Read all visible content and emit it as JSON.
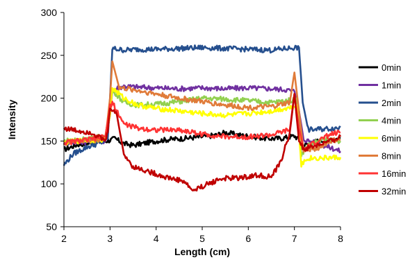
{
  "chart_data": {
    "type": "line",
    "title": "",
    "xlabel": "Length (cm)",
    "ylabel": "Intensity",
    "xlim": [
      2,
      8
    ],
    "ylim": [
      50,
      300
    ],
    "x_ticks": [
      2,
      3,
      4,
      5,
      6,
      7,
      8
    ],
    "y_ticks": [
      50,
      100,
      150,
      200,
      250,
      300
    ],
    "grid": false,
    "legend_position": "right",
    "series": [
      {
        "name": "0min",
        "color": "#000000",
        "x": [
          2.0,
          2.3,
          2.6,
          2.9,
          3.0,
          3.1,
          3.3,
          3.5,
          3.7,
          4.0,
          4.3,
          4.6,
          5.0,
          5.3,
          5.5,
          5.8,
          6.1,
          6.4,
          6.7,
          7.0,
          7.1,
          7.2,
          7.5,
          7.8,
          8.0
        ],
        "y": [
          140,
          146,
          148,
          150,
          151,
          153,
          147,
          145,
          147,
          150,
          152,
          153,
          155,
          157,
          160,
          157,
          155,
          153,
          153,
          156,
          152,
          145,
          150,
          152,
          153
        ]
      },
      {
        "name": "1min",
        "color": "#7030a0",
        "x": [
          2.0,
          2.3,
          2.6,
          2.9,
          3.0,
          3.05,
          3.3,
          3.6,
          4.0,
          4.5,
          5.0,
          5.5,
          6.0,
          6.5,
          6.8,
          7.0,
          7.1,
          7.2,
          7.5,
          7.8,
          8.0
        ],
        "y": [
          148,
          149,
          149,
          150,
          180,
          210,
          214,
          213,
          212,
          211,
          212,
          211,
          212,
          211,
          210,
          208,
          185,
          152,
          147,
          142,
          138
        ]
      },
      {
        "name": "2min",
        "color": "#254f8e",
        "x": [
          2.0,
          2.2,
          2.5,
          2.8,
          2.95,
          3.0,
          3.05,
          3.3,
          3.6,
          4.0,
          4.5,
          5.0,
          5.5,
          6.0,
          6.5,
          7.0,
          7.1,
          7.18,
          7.3,
          7.6,
          7.9,
          8.0
        ],
        "y": [
          122,
          135,
          143,
          148,
          152,
          200,
          258,
          256,
          257,
          257,
          258,
          259,
          258,
          257,
          256,
          259,
          259,
          195,
          163,
          164,
          165,
          166
        ]
      },
      {
        "name": "4min",
        "color": "#92d050",
        "x": [
          2.0,
          2.3,
          2.6,
          2.9,
          3.0,
          3.05,
          3.3,
          3.6,
          4.0,
          4.5,
          5.0,
          5.5,
          6.0,
          6.5,
          7.0,
          7.05,
          7.15,
          7.3,
          7.6,
          8.0
        ],
        "y": [
          150,
          152,
          153,
          156,
          190,
          210,
          195,
          192,
          193,
          196,
          200,
          199,
          197,
          195,
          198,
          200,
          135,
          145,
          152,
          150
        ]
      },
      {
        "name": "6min",
        "color": "#ffff00",
        "x": [
          2.0,
          2.3,
          2.6,
          2.9,
          3.0,
          3.05,
          3.3,
          3.6,
          4.0,
          4.5,
          5.0,
          5.5,
          6.0,
          6.5,
          7.0,
          7.05,
          7.15,
          7.3,
          7.6,
          8.0
        ],
        "y": [
          148,
          150,
          151,
          152,
          180,
          212,
          200,
          192,
          188,
          185,
          182,
          180,
          182,
          185,
          190,
          192,
          123,
          130,
          130,
          131
        ]
      },
      {
        "name": "8min",
        "color": "#e07b39",
        "x": [
          2.0,
          2.3,
          2.6,
          2.9,
          3.0,
          3.05,
          3.2,
          3.5,
          4.0,
          4.5,
          5.0,
          5.5,
          6.0,
          6.5,
          6.9,
          7.0,
          7.1,
          7.2,
          7.5,
          7.8,
          8.0
        ],
        "y": [
          148,
          150,
          151,
          153,
          200,
          243,
          212,
          210,
          205,
          200,
          196,
          192,
          189,
          190,
          195,
          230,
          185,
          138,
          142,
          150,
          152
        ]
      },
      {
        "name": "16min",
        "color": "#ff3333",
        "x": [
          2.0,
          2.3,
          2.6,
          2.9,
          3.0,
          3.05,
          3.3,
          3.6,
          4.0,
          4.5,
          5.0,
          5.5,
          6.0,
          6.5,
          6.9,
          7.0,
          7.1,
          7.2,
          7.5,
          7.8,
          8.0
        ],
        "y": [
          148,
          150,
          152,
          156,
          190,
          195,
          170,
          165,
          163,
          163,
          158,
          155,
          155,
          157,
          163,
          205,
          165,
          140,
          150,
          158,
          160
        ]
      },
      {
        "name": "32min",
        "color": "#c00000",
        "x": [
          2.0,
          2.3,
          2.6,
          2.9,
          2.95,
          3.0,
          3.15,
          3.3,
          3.5,
          3.8,
          4.2,
          4.6,
          4.8,
          5.0,
          5.4,
          5.8,
          6.2,
          6.5,
          6.7,
          6.9,
          7.0,
          7.1,
          7.2,
          7.5,
          7.8,
          8.0
        ],
        "y": [
          165,
          162,
          160,
          150,
          160,
          190,
          180,
          135,
          120,
          115,
          108,
          103,
          92,
          97,
          106,
          107,
          110,
          108,
          125,
          160,
          205,
          150,
          140,
          145,
          150,
          155
        ]
      }
    ]
  }
}
